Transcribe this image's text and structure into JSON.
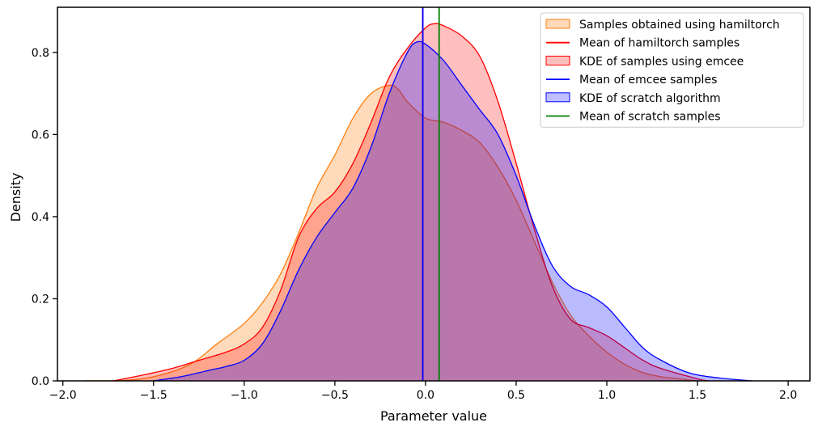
{
  "chart_data": {
    "type": "area",
    "title": "",
    "xlabel": "Parameter value",
    "ylabel": "Density",
    "xlim": [
      -2.03,
      2.12
    ],
    "ylim": [
      0,
      0.91
    ],
    "xticks": [
      -2.0,
      -1.5,
      -1.0,
      -0.5,
      0.0,
      0.5,
      1.0,
      1.5,
      2.0
    ],
    "xtick_labels": [
      "−2.0",
      "−1.5",
      "−1.0",
      "−0.5",
      "0.0",
      "0.5",
      "1.0",
      "1.5",
      "2.0"
    ],
    "yticks": [
      0.0,
      0.2,
      0.4,
      0.6,
      0.8
    ],
    "ytick_labels": [
      "0.0",
      "0.2",
      "0.4",
      "0.6",
      "0.8"
    ],
    "grid": false,
    "legend_position": "top-right",
    "series": [
      {
        "name": "Samples obtained using hamiltorch",
        "kind": "kde",
        "stroke": "#ff7f0e",
        "fill": "#ff7f0e",
        "fill_opacity": 0.28,
        "x": [
          -1.88,
          -1.7,
          -1.5,
          -1.3,
          -1.15,
          -1.0,
          -0.9,
          -0.8,
          -0.7,
          -0.6,
          -0.5,
          -0.4,
          -0.3,
          -0.2,
          -0.15,
          -0.1,
          0.0,
          0.1,
          0.2,
          0.3,
          0.4,
          0.5,
          0.6,
          0.7,
          0.8,
          0.9,
          1.0,
          1.1,
          1.2,
          1.3,
          1.4,
          1.5
        ],
        "y": [
          0.0,
          0.0,
          0.01,
          0.04,
          0.09,
          0.14,
          0.19,
          0.26,
          0.36,
          0.47,
          0.55,
          0.64,
          0.7,
          0.72,
          0.71,
          0.68,
          0.64,
          0.63,
          0.61,
          0.58,
          0.52,
          0.44,
          0.34,
          0.24,
          0.16,
          0.11,
          0.07,
          0.04,
          0.02,
          0.01,
          0.005,
          0.0
        ]
      },
      {
        "name": "KDE of samples using emcee",
        "kind": "kde",
        "stroke": "#ff0000",
        "fill": "#ff0000",
        "fill_opacity": 0.25,
        "x": [
          -1.72,
          -1.55,
          -1.4,
          -1.25,
          -1.1,
          -1.0,
          -0.9,
          -0.8,
          -0.7,
          -0.6,
          -0.5,
          -0.4,
          -0.3,
          -0.2,
          -0.1,
          0.0,
          0.05,
          0.1,
          0.2,
          0.3,
          0.4,
          0.5,
          0.6,
          0.7,
          0.8,
          0.9,
          1.0,
          1.1,
          1.2,
          1.3,
          1.5,
          1.56
        ],
        "y": [
          0.0,
          0.015,
          0.03,
          0.05,
          0.07,
          0.09,
          0.13,
          0.22,
          0.35,
          0.42,
          0.46,
          0.53,
          0.63,
          0.74,
          0.81,
          0.86,
          0.87,
          0.865,
          0.84,
          0.79,
          0.68,
          0.53,
          0.37,
          0.23,
          0.15,
          0.13,
          0.11,
          0.08,
          0.05,
          0.03,
          0.005,
          0.0
        ]
      },
      {
        "name": "KDE of scratch algorithm",
        "kind": "kde",
        "stroke": "#0000ff",
        "fill": "#0000ff",
        "fill_opacity": 0.27,
        "x": [
          -1.5,
          -1.35,
          -1.2,
          -1.1,
          -1.0,
          -0.9,
          -0.8,
          -0.7,
          -0.6,
          -0.5,
          -0.4,
          -0.3,
          -0.2,
          -0.1,
          -0.05,
          0.0,
          0.1,
          0.2,
          0.3,
          0.4,
          0.5,
          0.6,
          0.7,
          0.8,
          0.9,
          1.0,
          1.1,
          1.2,
          1.3,
          1.45,
          1.6,
          1.8
        ],
        "y": [
          0.0,
          0.01,
          0.025,
          0.035,
          0.05,
          0.09,
          0.17,
          0.27,
          0.35,
          0.41,
          0.47,
          0.57,
          0.7,
          0.8,
          0.825,
          0.82,
          0.78,
          0.72,
          0.66,
          0.6,
          0.5,
          0.38,
          0.28,
          0.23,
          0.21,
          0.18,
          0.13,
          0.08,
          0.05,
          0.02,
          0.008,
          0.0
        ]
      }
    ],
    "vertical_lines": [
      {
        "name": "Mean of hamiltorch samples",
        "x": -0.015,
        "color": "#ff0000",
        "hidden_behind": true
      },
      {
        "name": "Mean of emcee samples",
        "x": -0.015,
        "color": "#0000ff"
      },
      {
        "name": "Mean of scratch samples",
        "x": 0.075,
        "color": "#008000"
      }
    ],
    "legend": [
      {
        "label": "Samples obtained using hamiltorch",
        "kind": "patch",
        "stroke": "#ff7f0e",
        "fill": "#ffd9b8"
      },
      {
        "label": "Mean of hamiltorch samples",
        "kind": "line",
        "stroke": "#ff0000"
      },
      {
        "label": "KDE of samples using emcee",
        "kind": "patch",
        "stroke": "#ff0000",
        "fill": "#ffbfbf"
      },
      {
        "label": "Mean of emcee samples",
        "kind": "line",
        "stroke": "#0000ff"
      },
      {
        "label": "KDE of scratch algorithm",
        "kind": "patch",
        "stroke": "#0000ff",
        "fill": "#bfbfff"
      },
      {
        "label": "Mean of scratch samples",
        "kind": "line",
        "stroke": "#008000"
      }
    ]
  }
}
